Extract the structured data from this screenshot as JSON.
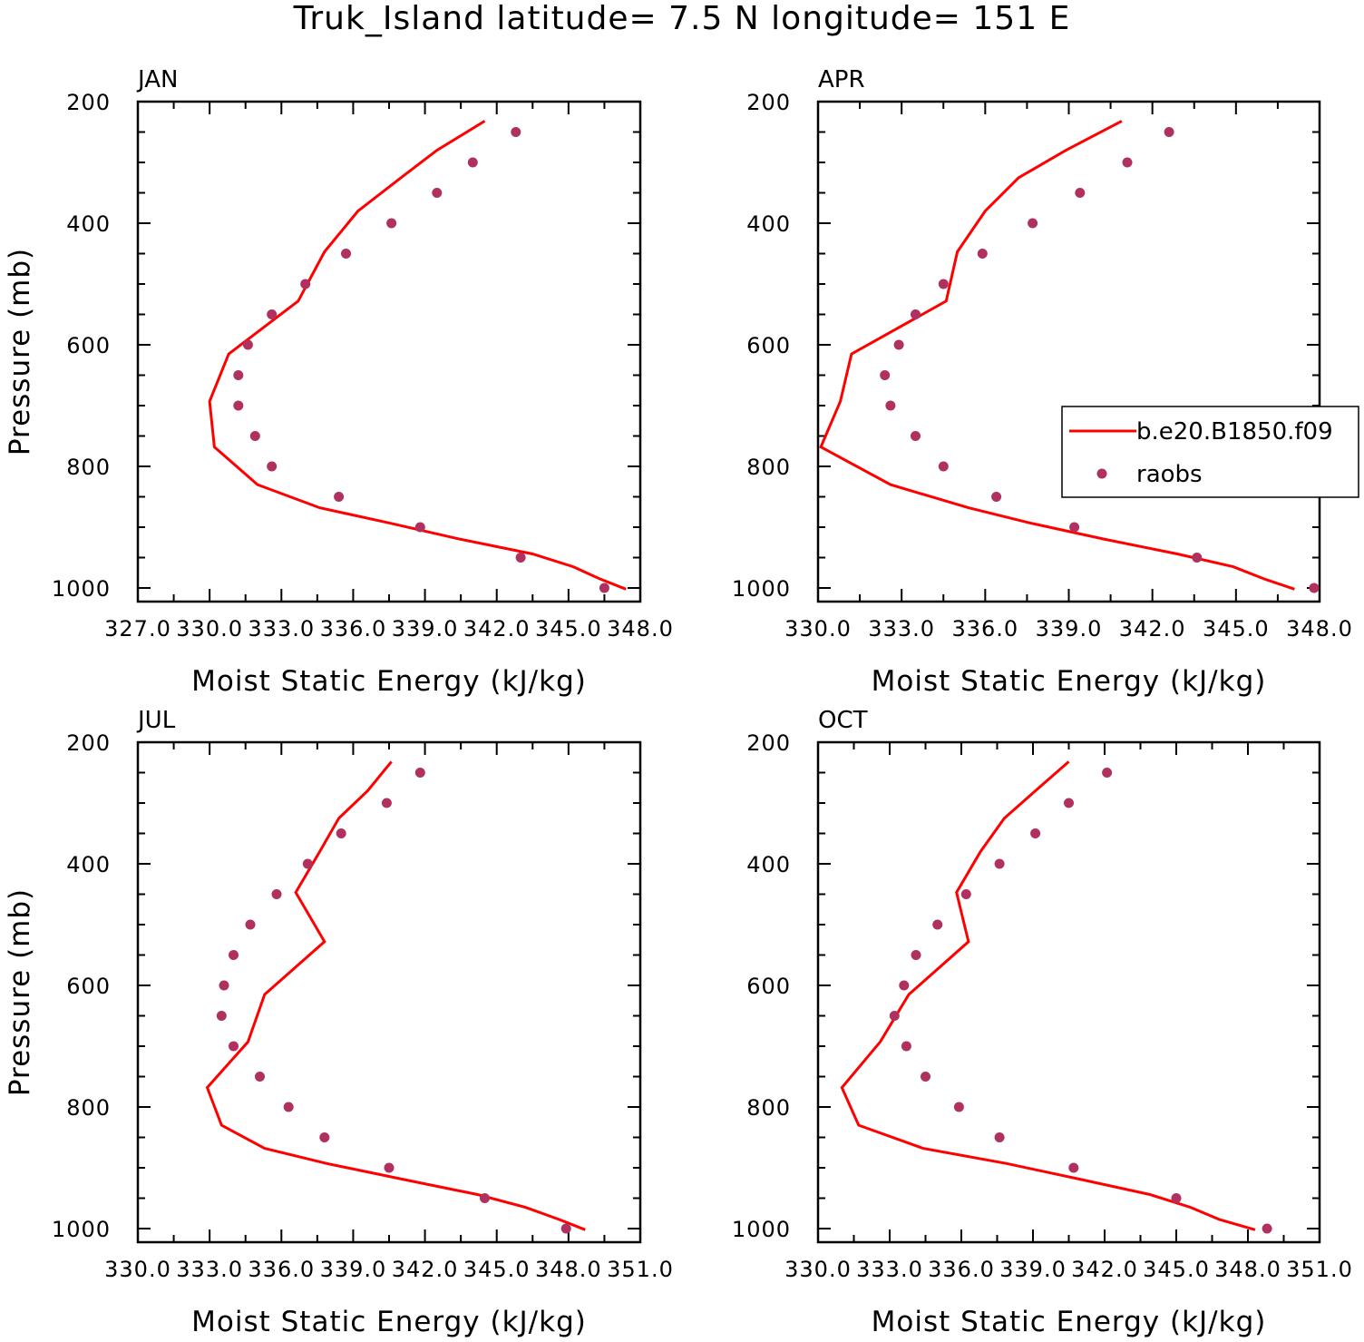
{
  "title": "Truk_Island  latitude= 7.5 N longitude= 151 E",
  "colors": {
    "model": "#ff0000",
    "obs": "#b03060",
    "axis": "#000000"
  },
  "legend": {
    "placement": "inside-right of APR panel",
    "entries": [
      {
        "label": "b.e20.B1850.f09",
        "style": "line",
        "color": "#ff0000"
      },
      {
        "label": "raobs",
        "style": "marker",
        "color": "#b03060"
      }
    ]
  },
  "chart_data": [
    {
      "type": "line",
      "panel": "JAN",
      "xlabel": "Moist Static Energy (kJ/kg)",
      "ylabel": "Pressure (mb)",
      "xlim": [
        327.0,
        348.0
      ],
      "ylim": [
        1000,
        200
      ],
      "y_reversed": true,
      "xticks": [
        327.0,
        330.0,
        333.0,
        336.0,
        339.0,
        342.0,
        345.0,
        348.0
      ],
      "xtick_labels": [
        "327.0",
        "330.0",
        "333.0",
        "336.0",
        "339.0",
        "342.0",
        "345.0",
        "348.0"
      ],
      "yticks": [
        200,
        400,
        600,
        800,
        1000
      ],
      "series": [
        {
          "name": "b.e20.B1850.f09",
          "style": "line",
          "points": [
            [
              341.5,
              232
            ],
            [
              339.5,
              280
            ],
            [
              338.0,
              325
            ],
            [
              336.2,
              380
            ],
            [
              334.8,
              447
            ],
            [
              333.7,
              528
            ],
            [
              330.8,
              615
            ],
            [
              330.0,
              693
            ],
            [
              330.2,
              768
            ],
            [
              332.0,
              830
            ],
            [
              334.6,
              868
            ],
            [
              337.5,
              893
            ],
            [
              340.5,
              920
            ],
            [
              343.5,
              944
            ],
            [
              345.2,
              965
            ],
            [
              346.3,
              985
            ],
            [
              347.4,
              1002
            ]
          ]
        },
        {
          "name": "raobs",
          "style": "scatter",
          "points": [
            [
              342.8,
              250
            ],
            [
              341.0,
              300
            ],
            [
              339.5,
              350
            ],
            [
              337.6,
              400
            ],
            [
              335.7,
              450
            ],
            [
              334.0,
              500
            ],
            [
              332.6,
              550
            ],
            [
              331.6,
              600
            ],
            [
              331.2,
              650
            ],
            [
              331.2,
              700
            ],
            [
              331.9,
              750
            ],
            [
              332.6,
              800
            ],
            [
              335.4,
              850
            ],
            [
              338.8,
              900
            ],
            [
              343.0,
              950
            ],
            [
              346.5,
              1000
            ]
          ]
        }
      ]
    },
    {
      "type": "line",
      "panel": "APR",
      "xlabel": "Moist Static Energy (kJ/kg)",
      "ylabel": "",
      "xlim": [
        330.0,
        348.0
      ],
      "ylim": [
        1000,
        200
      ],
      "y_reversed": true,
      "xticks": [
        330.0,
        333.0,
        336.0,
        339.0,
        342.0,
        345.0,
        348.0
      ],
      "xtick_labels": [
        "330.0",
        "333.0",
        "336.0",
        "339.0",
        "342.0",
        "345.0",
        "348.0"
      ],
      "yticks": [
        200,
        400,
        600,
        800,
        1000
      ],
      "series": [
        {
          "name": "b.e20.B1850.f09",
          "style": "line",
          "points": [
            [
              340.9,
              232
            ],
            [
              338.9,
              280
            ],
            [
              337.2,
              325
            ],
            [
              336.0,
              380
            ],
            [
              335.0,
              447
            ],
            [
              334.6,
              528
            ],
            [
              331.2,
              615
            ],
            [
              330.8,
              693
            ],
            [
              330.1,
              768
            ],
            [
              332.6,
              830
            ],
            [
              335.4,
              868
            ],
            [
              337.6,
              893
            ],
            [
              340.3,
              920
            ],
            [
              342.9,
              944
            ],
            [
              344.9,
              965
            ],
            [
              346.0,
              985
            ],
            [
              347.1,
              1002
            ]
          ]
        },
        {
          "name": "raobs",
          "style": "scatter",
          "points": [
            [
              342.6,
              250
            ],
            [
              341.1,
              300
            ],
            [
              339.4,
              350
            ],
            [
              337.7,
              400
            ],
            [
              335.9,
              450
            ],
            [
              334.5,
              500
            ],
            [
              333.5,
              550
            ],
            [
              332.9,
              600
            ],
            [
              332.4,
              650
            ],
            [
              332.6,
              700
            ],
            [
              333.5,
              750
            ],
            [
              334.5,
              800
            ],
            [
              336.4,
              850
            ],
            [
              339.2,
              900
            ],
            [
              343.6,
              950
            ],
            [
              347.8,
              1000
            ]
          ]
        }
      ]
    },
    {
      "type": "line",
      "panel": "JUL",
      "xlabel": "Moist Static Energy (kJ/kg)",
      "ylabel": "Pressure (mb)",
      "xlim": [
        330.0,
        351.0
      ],
      "ylim": [
        1000,
        200
      ],
      "y_reversed": true,
      "xticks": [
        330.0,
        333.0,
        336.0,
        339.0,
        342.0,
        345.0,
        348.0,
        351.0
      ],
      "xtick_labels": [
        "330.0",
        "333.0",
        "336.0",
        "339.0",
        "342.0",
        "345.0",
        "348.0",
        "351.0"
      ],
      "yticks": [
        200,
        400,
        600,
        800,
        1000
      ],
      "series": [
        {
          "name": "b.e20.B1850.f09",
          "style": "line",
          "points": [
            [
              340.6,
              232
            ],
            [
              339.6,
              280
            ],
            [
              338.4,
              325
            ],
            [
              337.6,
              380
            ],
            [
              336.6,
              447
            ],
            [
              337.8,
              528
            ],
            [
              335.3,
              615
            ],
            [
              334.6,
              693
            ],
            [
              332.9,
              768
            ],
            [
              333.5,
              830
            ],
            [
              335.3,
              868
            ],
            [
              337.9,
              893
            ],
            [
              341.2,
              920
            ],
            [
              344.2,
              944
            ],
            [
              346.2,
              965
            ],
            [
              347.6,
              985
            ],
            [
              348.7,
              1002
            ]
          ]
        },
        {
          "name": "raobs",
          "style": "scatter",
          "points": [
            [
              341.8,
              250
            ],
            [
              340.4,
              300
            ],
            [
              338.5,
              350
            ],
            [
              337.1,
              400
            ],
            [
              335.8,
              450
            ],
            [
              334.7,
              500
            ],
            [
              334.0,
              550
            ],
            [
              333.6,
              600
            ],
            [
              333.5,
              650
            ],
            [
              334.0,
              700
            ],
            [
              335.1,
              750
            ],
            [
              336.3,
              800
            ],
            [
              337.8,
              850
            ],
            [
              340.5,
              900
            ],
            [
              344.5,
              950
            ],
            [
              347.9,
              1000
            ]
          ]
        }
      ]
    },
    {
      "type": "line",
      "panel": "OCT",
      "xlabel": "Moist Static Energy (kJ/kg)",
      "ylabel": "",
      "xlim": [
        330.0,
        351.0
      ],
      "ylim": [
        1000,
        200
      ],
      "y_reversed": true,
      "xticks": [
        330.0,
        333.0,
        336.0,
        339.0,
        342.0,
        345.0,
        348.0,
        351.0
      ],
      "xtick_labels": [
        "330.0",
        "333.0",
        "336.0",
        "339.0",
        "342.0",
        "345.0",
        "348.0",
        "351.0"
      ],
      "yticks": [
        200,
        400,
        600,
        800,
        1000
      ],
      "series": [
        {
          "name": "b.e20.B1850.f09",
          "style": "line",
          "points": [
            [
              340.5,
              232
            ],
            [
              339.1,
              280
            ],
            [
              337.8,
              325
            ],
            [
              336.8,
              380
            ],
            [
              335.8,
              447
            ],
            [
              336.3,
              528
            ],
            [
              333.8,
              615
            ],
            [
              332.6,
              693
            ],
            [
              331.0,
              768
            ],
            [
              331.7,
              830
            ],
            [
              334.4,
              868
            ],
            [
              337.9,
              893
            ],
            [
              341.1,
              920
            ],
            [
              343.9,
              944
            ],
            [
              345.6,
              965
            ],
            [
              346.8,
              985
            ],
            [
              348.3,
              1002
            ]
          ]
        },
        {
          "name": "raobs",
          "style": "scatter",
          "points": [
            [
              342.1,
              250
            ],
            [
              340.5,
              300
            ],
            [
              339.1,
              350
            ],
            [
              337.6,
              400
            ],
            [
              336.2,
              450
            ],
            [
              335.0,
              500
            ],
            [
              334.1,
              550
            ],
            [
              333.6,
              600
            ],
            [
              333.2,
              650
            ],
            [
              333.7,
              700
            ],
            [
              334.5,
              750
            ],
            [
              335.9,
              800
            ],
            [
              337.6,
              850
            ],
            [
              340.7,
              900
            ],
            [
              345.0,
              950
            ],
            [
              348.8,
              1000
            ]
          ]
        }
      ]
    }
  ]
}
